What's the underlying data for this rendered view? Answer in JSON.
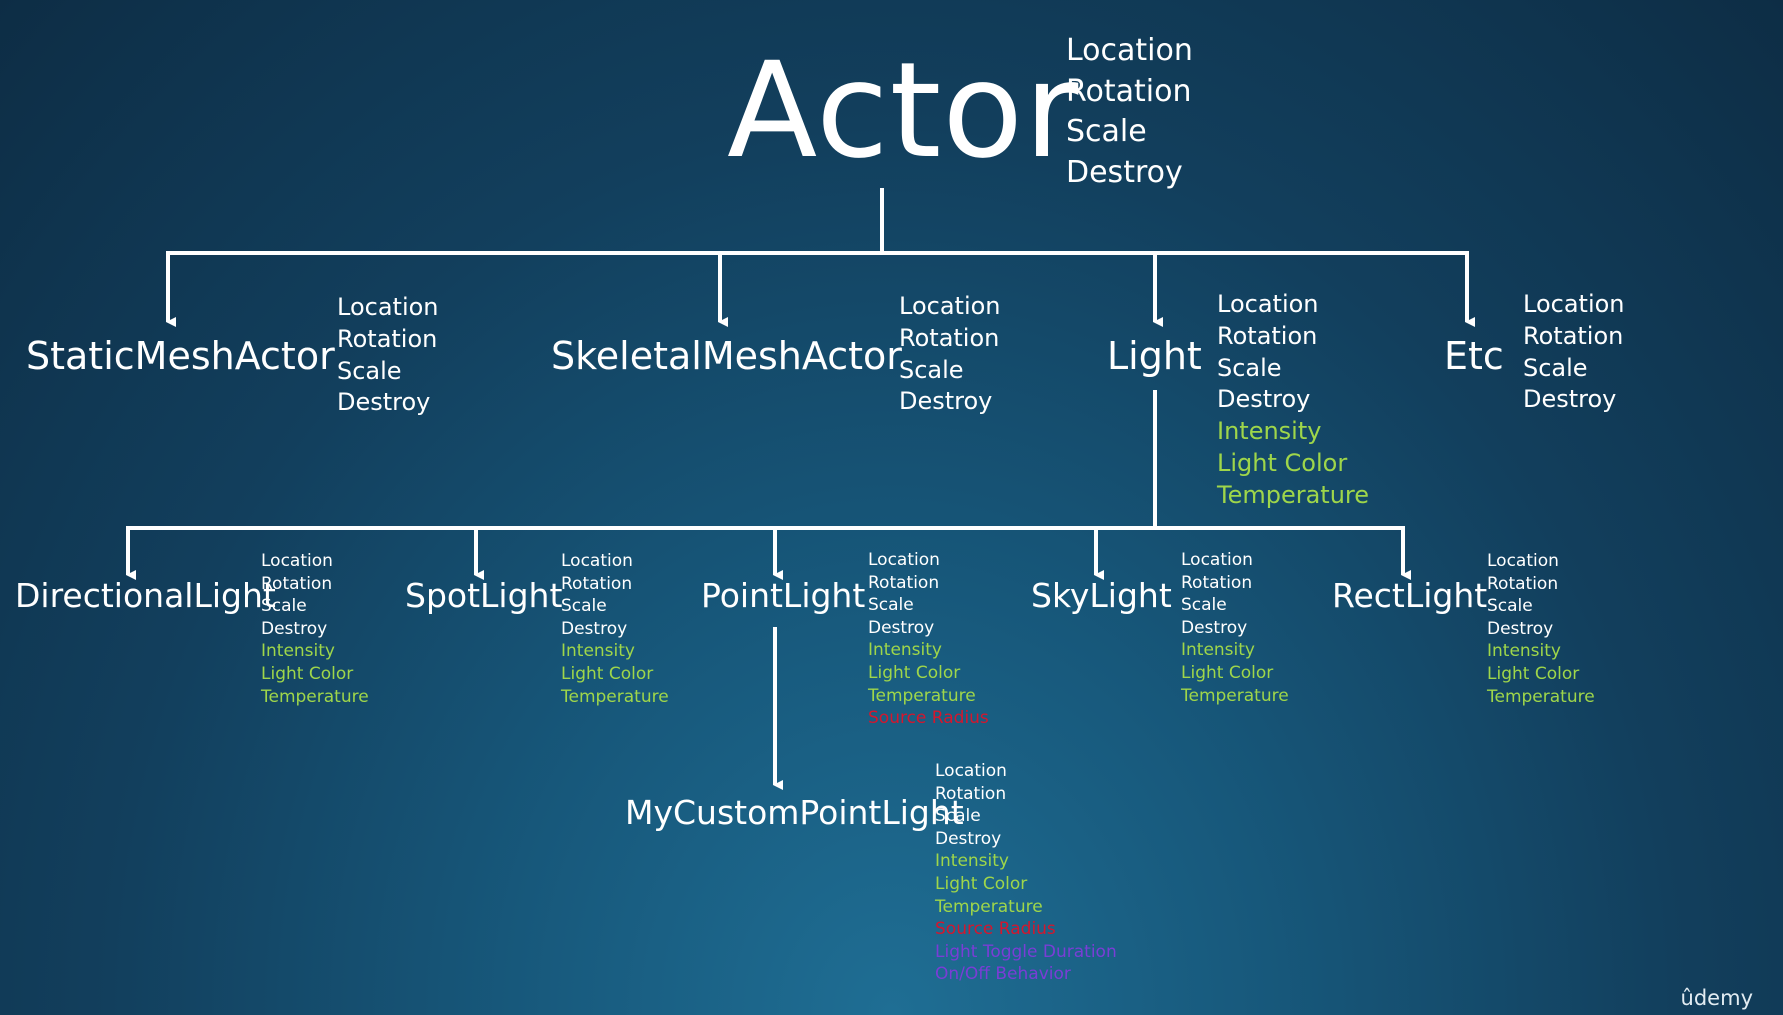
{
  "diagram": {
    "title": "Actor",
    "root_properties": [
      {
        "text": "Location",
        "kind": "base"
      },
      {
        "text": "Rotation",
        "kind": "base"
      },
      {
        "text": "Scale",
        "kind": "base"
      },
      {
        "text": "Destroy",
        "kind": "base"
      }
    ],
    "level1": [
      {
        "label": "StaticMeshActor",
        "properties": [
          {
            "text": "Location",
            "kind": "base"
          },
          {
            "text": "Rotation",
            "kind": "base"
          },
          {
            "text": "Scale",
            "kind": "base"
          },
          {
            "text": "Destroy",
            "kind": "base"
          }
        ]
      },
      {
        "label": "SkeletalMeshActor",
        "properties": [
          {
            "text": "Location",
            "kind": "base"
          },
          {
            "text": "Rotation",
            "kind": "base"
          },
          {
            "text": "Scale",
            "kind": "base"
          },
          {
            "text": "Destroy",
            "kind": "base"
          }
        ]
      },
      {
        "label": "Light",
        "properties": [
          {
            "text": "Location",
            "kind": "base"
          },
          {
            "text": "Rotation",
            "kind": "base"
          },
          {
            "text": "Scale",
            "kind": "base"
          },
          {
            "text": "Destroy",
            "kind": "base"
          },
          {
            "text": "Intensity",
            "kind": "light"
          },
          {
            "text": "Light Color",
            "kind": "light"
          },
          {
            "text": "Temperature",
            "kind": "light"
          }
        ]
      },
      {
        "label": "Etc",
        "properties": [
          {
            "text": "Location",
            "kind": "base"
          },
          {
            "text": "Rotation",
            "kind": "base"
          },
          {
            "text": "Scale",
            "kind": "base"
          },
          {
            "text": "Destroy",
            "kind": "base"
          }
        ]
      }
    ],
    "level2": [
      {
        "label": "DirectionalLight",
        "properties": [
          {
            "text": "Location",
            "kind": "base"
          },
          {
            "text": "Rotation",
            "kind": "base"
          },
          {
            "text": "Scale",
            "kind": "base"
          },
          {
            "text": "Destroy",
            "kind": "base"
          },
          {
            "text": "Intensity",
            "kind": "light"
          },
          {
            "text": "Light Color",
            "kind": "light"
          },
          {
            "text": "Temperature",
            "kind": "light"
          }
        ]
      },
      {
        "label": "SpotLight",
        "properties": [
          {
            "text": "Location",
            "kind": "base"
          },
          {
            "text": "Rotation",
            "kind": "base"
          },
          {
            "text": "Scale",
            "kind": "base"
          },
          {
            "text": "Destroy",
            "kind": "base"
          },
          {
            "text": "Intensity",
            "kind": "light"
          },
          {
            "text": "Light Color",
            "kind": "light"
          },
          {
            "text": "Temperature",
            "kind": "light"
          }
        ]
      },
      {
        "label": "PointLight",
        "properties": [
          {
            "text": "Location",
            "kind": "base"
          },
          {
            "text": "Rotation",
            "kind": "base"
          },
          {
            "text": "Scale",
            "kind": "base"
          },
          {
            "text": "Destroy",
            "kind": "base"
          },
          {
            "text": "Intensity",
            "kind": "light"
          },
          {
            "text": "Light Color",
            "kind": "light"
          },
          {
            "text": "Temperature",
            "kind": "light"
          },
          {
            "text": "Source Radius",
            "kind": "point"
          }
        ]
      },
      {
        "label": "SkyLight",
        "properties": [
          {
            "text": "Location",
            "kind": "base"
          },
          {
            "text": "Rotation",
            "kind": "base"
          },
          {
            "text": "Scale",
            "kind": "base"
          },
          {
            "text": "Destroy",
            "kind": "base"
          },
          {
            "text": "Intensity",
            "kind": "light"
          },
          {
            "text": "Light Color",
            "kind": "light"
          },
          {
            "text": "Temperature",
            "kind": "light"
          }
        ]
      },
      {
        "label": "RectLight",
        "properties": [
          {
            "text": "Location",
            "kind": "base"
          },
          {
            "text": "Rotation",
            "kind": "base"
          },
          {
            "text": "Scale",
            "kind": "base"
          },
          {
            "text": "Destroy",
            "kind": "base"
          },
          {
            "text": "Intensity",
            "kind": "light"
          },
          {
            "text": "Light Color",
            "kind": "light"
          },
          {
            "text": "Temperature",
            "kind": "light"
          }
        ]
      }
    ],
    "level3": [
      {
        "label": "MyCustomPointLight",
        "properties": [
          {
            "text": "Location",
            "kind": "base"
          },
          {
            "text": "Rotation",
            "kind": "base"
          },
          {
            "text": "Scale",
            "kind": "base"
          },
          {
            "text": "Destroy",
            "kind": "base"
          },
          {
            "text": "Intensity",
            "kind": "light"
          },
          {
            "text": "Light Color",
            "kind": "light"
          },
          {
            "text": "Temperature",
            "kind": "light"
          },
          {
            "text": "Source Radius",
            "kind": "point"
          },
          {
            "text": "Light Toggle Duration",
            "kind": "custom"
          },
          {
            "text": "On/Off Behavior",
            "kind": "custom"
          }
        ]
      }
    ]
  },
  "watermark": "ûdemy",
  "colors": {
    "background_top": "#0d2d45",
    "background_bottom": "#1f6e94",
    "text": "#ffffff",
    "light_property": "#9fd64a",
    "point_property": "#d5162d",
    "custom_property": "#7a3dd6",
    "connector": "#ffffff"
  }
}
